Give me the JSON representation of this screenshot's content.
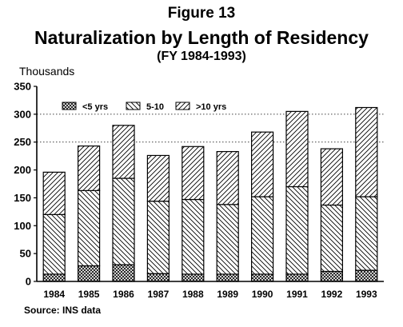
{
  "header": {
    "figure": "Figure 13",
    "title": "Naturalization by Length of Residency",
    "subtitle": "(FY 1984-1993)"
  },
  "axis": {
    "ylabel": "Thousands"
  },
  "footer": {
    "source": "Source: INS data"
  },
  "chart_data": {
    "type": "bar",
    "stacked": true,
    "title": "Naturalization by Length of Residency",
    "subtitle": "(FY 1984-1993)",
    "xlabel": "",
    "ylabel": "Thousands",
    "ylim": [
      0,
      350
    ],
    "yticks": [
      0,
      50,
      100,
      150,
      200,
      250,
      300,
      350
    ],
    "categories": [
      "1984",
      "1985",
      "1986",
      "1987",
      "1988",
      "1989",
      "1990",
      "1991",
      "1992",
      "1993"
    ],
    "series": [
      {
        "name": "<5 yrs",
        "pattern": "crosshatch",
        "values": [
          13,
          28,
          30,
          14,
          13,
          13,
          13,
          13,
          18,
          20
        ]
      },
      {
        "name": "5-10",
        "pattern": "diagonal-left",
        "values": [
          107,
          135,
          155,
          130,
          134,
          125,
          139,
          157,
          119,
          132
        ]
      },
      {
        "name": ">10 yrs",
        "pattern": "diagonal-right",
        "values": [
          76,
          80,
          95,
          82,
          95,
          95,
          116,
          135,
          101,
          160
        ]
      }
    ],
    "gridlines": [
      250,
      300
    ],
    "legend_position": "top-left"
  }
}
